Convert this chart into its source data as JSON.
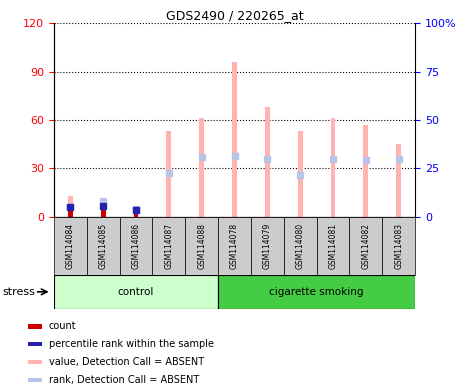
{
  "title": "GDS2490 / 220265_at",
  "samples": [
    "GSM114084",
    "GSM114085",
    "GSM114086",
    "GSM114087",
    "GSM114088",
    "GSM114078",
    "GSM114079",
    "GSM114080",
    "GSM114081",
    "GSM114082",
    "GSM114083"
  ],
  "value_absent": [
    13,
    12,
    7,
    53,
    61,
    96,
    68,
    53,
    61,
    57,
    45
  ],
  "rank_absent": [
    6,
    10,
    5,
    27,
    37,
    38,
    36,
    26,
    36,
    35,
    36
  ],
  "count": [
    5,
    5,
    3,
    0,
    0,
    0,
    0,
    0,
    0,
    0,
    0
  ],
  "percentile": [
    6,
    7,
    4,
    0,
    0,
    0,
    0,
    0,
    0,
    0,
    0
  ],
  "groups": {
    "control": [
      0,
      1,
      2,
      3,
      4
    ],
    "cigarette smoking": [
      5,
      6,
      7,
      8,
      9,
      10
    ]
  },
  "ylim_left": [
    0,
    120
  ],
  "ylim_right": [
    0,
    100
  ],
  "yticks_left": [
    0,
    30,
    60,
    90,
    120
  ],
  "yticks_right": [
    0,
    25,
    50,
    75,
    100
  ],
  "yticklabels_left": [
    "0",
    "30",
    "60",
    "90",
    "120"
  ],
  "yticklabels_right": [
    "0",
    "25",
    "50",
    "75",
    "100%"
  ],
  "color_value_absent": "#ffb3b3",
  "color_rank_absent": "#b8c4e8",
  "color_count": "#cc0000",
  "color_percentile": "#2222aa",
  "color_control_bg": "#ccffcc",
  "color_smoking_bg": "#44cc44",
  "bar_width": 0.15,
  "rank_marker_size": 4,
  "legend_items": [
    {
      "color": "#cc0000",
      "label": "count"
    },
    {
      "color": "#2222aa",
      "label": "percentile rank within the sample"
    },
    {
      "color": "#ffb3b3",
      "label": "value, Detection Call = ABSENT"
    },
    {
      "color": "#b8c4e8",
      "label": "rank, Detection Call = ABSENT"
    }
  ]
}
